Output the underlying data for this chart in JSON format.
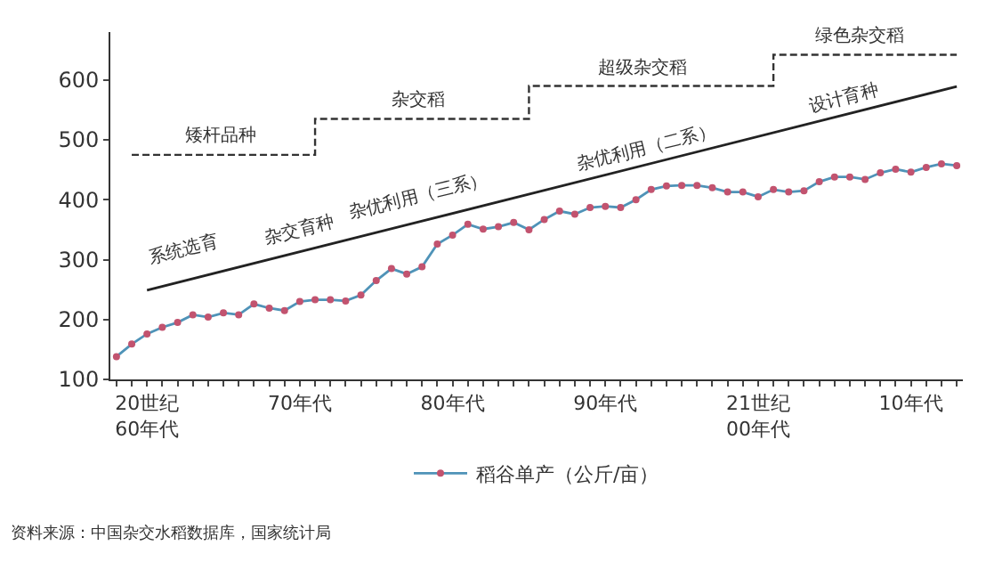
{
  "chart_data": {
    "type": "line",
    "categories": [
      null,
      null,
      "20世纪\n60年代",
      null,
      null,
      null,
      null,
      null,
      null,
      null,
      null,
      null,
      "70年代",
      null,
      null,
      null,
      null,
      null,
      null,
      null,
      null,
      null,
      "80年代",
      null,
      null,
      null,
      null,
      null,
      null,
      null,
      null,
      null,
      "90年代",
      null,
      null,
      null,
      null,
      null,
      null,
      null,
      null,
      null,
      "21世纪\n00年代",
      null,
      null,
      null,
      null,
      null,
      null,
      null,
      null,
      null,
      "10年代",
      null,
      null,
      null
    ],
    "series": [
      {
        "name": "稻谷单产（公斤/亩）",
        "color": "#4f93b8",
        "marker": "circle",
        "values": [
          138,
          159,
          176,
          187,
          195,
          208,
          204,
          211,
          208,
          226,
          219,
          215,
          230,
          233,
          233,
          231,
          241,
          265,
          285,
          276,
          288,
          326,
          341,
          359,
          351,
          355,
          362,
          350,
          367,
          381,
          376,
          387,
          389,
          387,
          400,
          417,
          423,
          424,
          424,
          420,
          413,
          413,
          405,
          417,
          413,
          415,
          430,
          438,
          438,
          434,
          445,
          451,
          446,
          454,
          460,
          457
        ]
      },
      {
        "type": "step",
        "color": "#333333",
        "line_style": "dashed",
        "values": [
          null,
          475,
          null,
          null,
          null,
          null,
          null,
          null,
          null,
          null,
          null,
          null,
          null,
          535,
          null,
          null,
          null,
          null,
          null,
          null,
          null,
          null,
          null,
          null,
          null,
          null,
          null,
          590,
          null,
          null,
          null,
          null,
          null,
          null,
          null,
          null,
          null,
          null,
          null,
          null,
          null,
          null,
          null,
          642,
          null,
          null,
          null,
          null,
          null,
          null,
          null,
          null,
          null,
          null,
          null,
          642
        ]
      },
      {
        "type": "line",
        "color": "#222222",
        "line_style": "solid",
        "values": [
          null,
          null,
          249,
          null,
          null,
          null,
          null,
          null,
          null,
          null,
          null,
          null,
          null,
          null,
          null,
          null,
          null,
          null,
          null,
          null,
          null,
          null,
          null,
          null,
          null,
          null,
          null,
          null,
          null,
          null,
          null,
          null,
          null,
          null,
          null,
          null,
          null,
          null,
          null,
          null,
          null,
          null,
          null,
          null,
          null,
          null,
          null,
          null,
          null,
          null,
          null,
          null,
          null,
          null,
          null,
          589
        ]
      }
    ],
    "ylim": [
      100,
      680
    ],
    "yticks": [
      100,
      200,
      300,
      400,
      500,
      600
    ],
    "legend": "bottom",
    "annotations": [
      "矮杆品种",
      "杂交稻",
      "超级杂交稻",
      "绿色杂交稻",
      "系统选育",
      "杂交育种",
      "杂优利用（三系）",
      "杂优利用（二系）",
      "设计育种",
      "资料来源：中国杂交水稻数据库，国家统计局"
    ]
  }
}
